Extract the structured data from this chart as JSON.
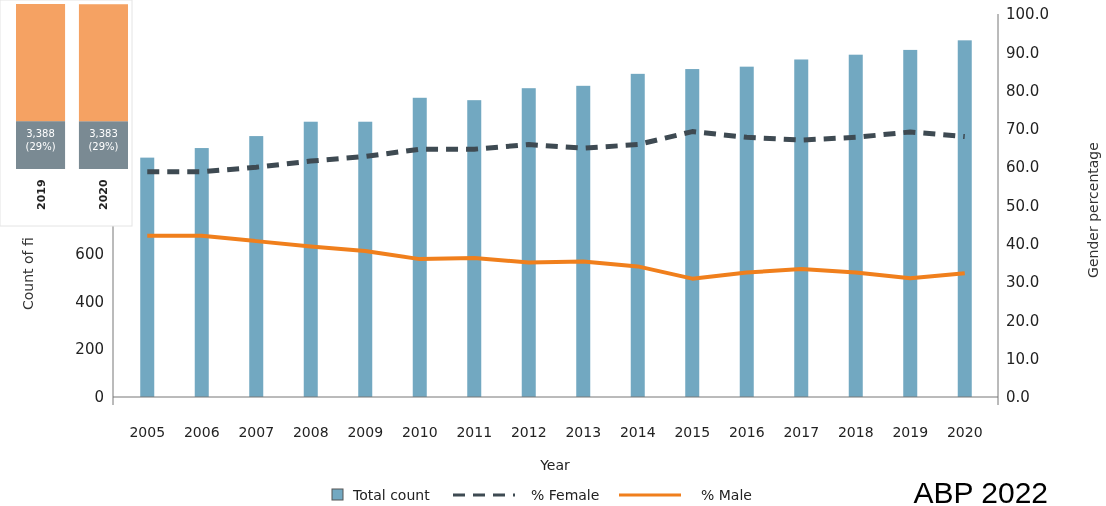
{
  "chart_data": [
    {
      "type": "bar",
      "xlabel": "Year",
      "ylabel": "Count of fi",
      "y2label": "Gender percentage",
      "categories": [
        "2005",
        "2006",
        "2007",
        "2008",
        "2009",
        "2010",
        "2011",
        "2012",
        "2013",
        "2014",
        "2015",
        "2016",
        "2017",
        "2018",
        "2019",
        "2020"
      ],
      "series": [
        {
          "name": "Total count",
          "type": "bar",
          "color": "#72a8c1",
          "values": [
            1000,
            1040,
            1090,
            1150,
            1150,
            1250,
            1240,
            1290,
            1300,
            1350,
            1370,
            1380,
            1410,
            1430,
            1450,
            1490
          ]
        },
        {
          "name": "% Female",
          "type": "line",
          "axis": "y2",
          "line_style": "dashed",
          "color": "#3e4a52",
          "values": [
            58.8,
            58.8,
            60.0,
            61.6,
            62.8,
            64.7,
            64.7,
            65.9,
            65.0,
            65.9,
            69.3,
            67.8,
            67.1,
            67.8,
            69.2,
            68.0
          ]
        },
        {
          "name": "% Male",
          "type": "line",
          "axis": "y2",
          "line_style": "solid",
          "color": "#f07f1c",
          "values": [
            42.1,
            42.1,
            40.7,
            39.3,
            38.1,
            36.0,
            36.3,
            35.1,
            35.4,
            34.1,
            30.9,
            32.5,
            33.4,
            32.5,
            31.0,
            32.3
          ]
        }
      ],
      "ylim": [
        0,
        1600
      ],
      "yticks": [
        0,
        200,
        400,
        600
      ],
      "y2lim": [
        0,
        100
      ],
      "y2ticks": [
        {
          "value": 0,
          "label": "0.0"
        },
        {
          "value": 10,
          "label": "10.0"
        },
        {
          "value": 20,
          "label": "20.0"
        },
        {
          "value": 30,
          "label": "30.0"
        },
        {
          "value": 40,
          "label": "40.0"
        },
        {
          "value": 50,
          "label": "50.0"
        },
        {
          "value": 60,
          "label": "60.0"
        },
        {
          "value": 70,
          "label": "70.0"
        },
        {
          "value": 80,
          "label": "80.0"
        },
        {
          "value": 90,
          "label": "90.0"
        },
        {
          "value": 100,
          "label": "100.0"
        }
      ],
      "grid": false,
      "legend": "bottom",
      "annotations": [
        "ABP 2022"
      ]
    },
    {
      "type": "bar",
      "stacked": true,
      "categories": [
        "2019",
        "2020"
      ],
      "series": [
        {
          "color": "#7a8a93",
          "values": [
            3388,
            3383
          ],
          "value_labels": [
            "3,388 (29%)",
            "3,383 (29%)"
          ]
        },
        {
          "color": "#f5a263",
          "values": [
            8295,
            8283
          ]
        }
      ]
    }
  ]
}
